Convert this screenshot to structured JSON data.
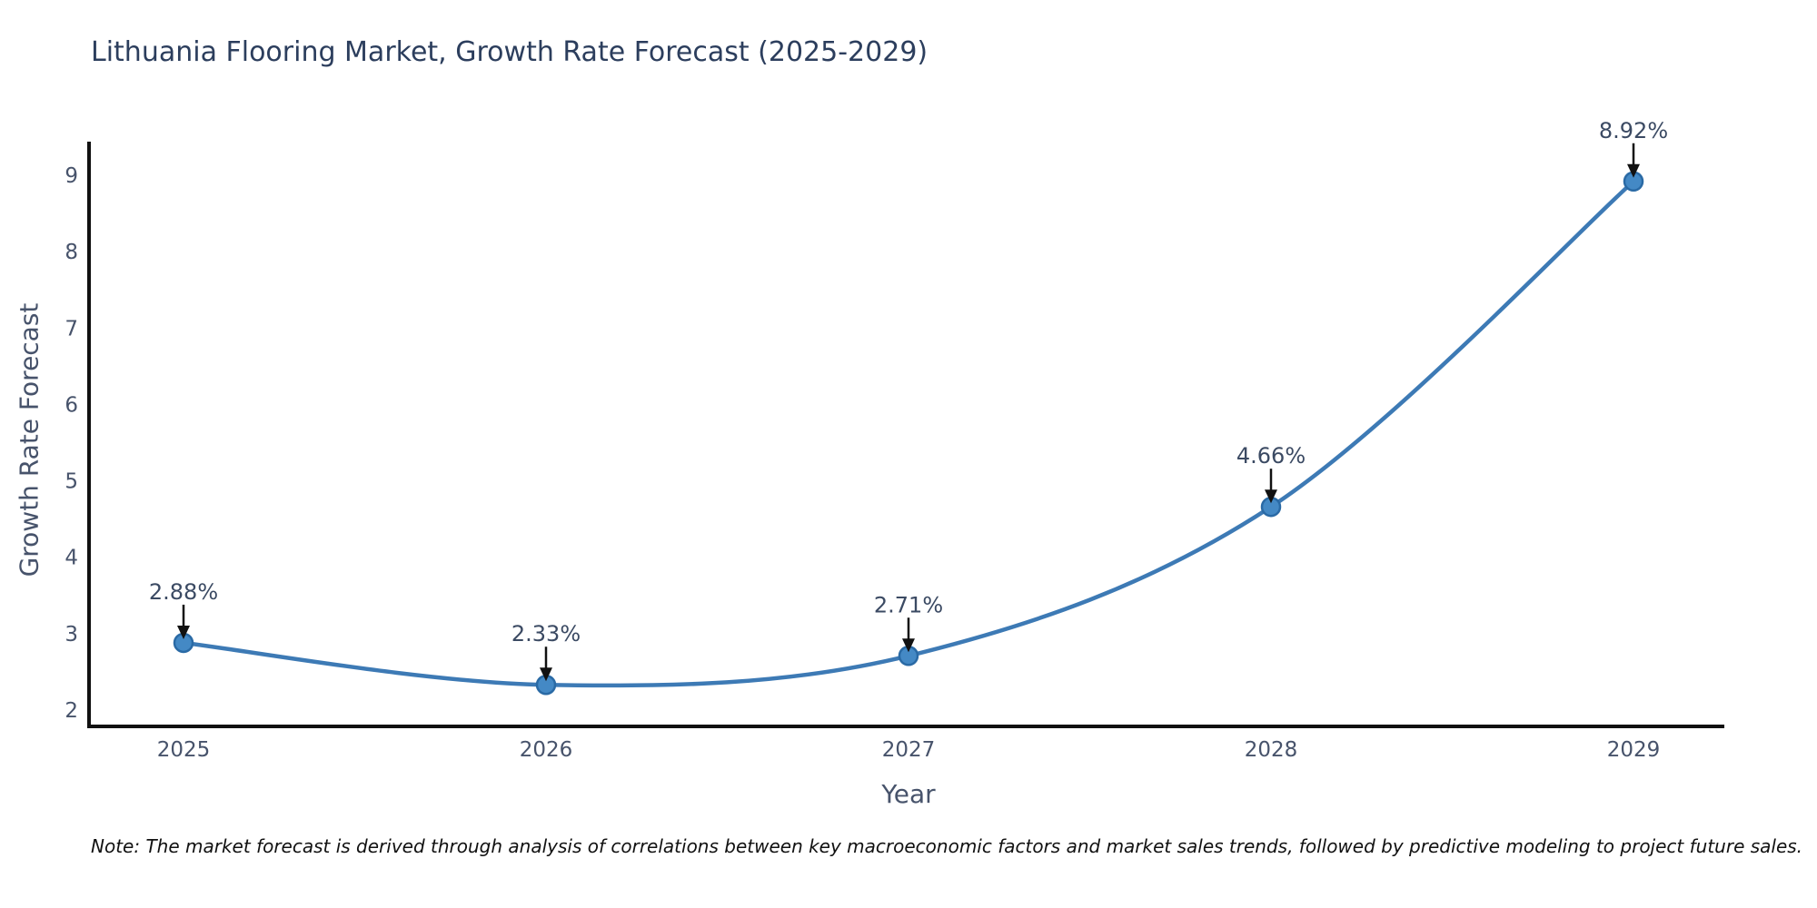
{
  "chart_data": {
    "type": "line",
    "title": "Lithuania Flooring Market, Growth Rate Forecast (2025-2029)",
    "xlabel": "Year",
    "ylabel": "Growth Rate Forecast",
    "x": [
      2025,
      2026,
      2027,
      2028,
      2029
    ],
    "series": [
      {
        "name": "Growth Rate Forecast",
        "values": [
          2.88,
          2.33,
          2.71,
          4.66,
          8.92
        ]
      }
    ],
    "point_labels": [
      "2.88%",
      "2.33%",
      "2.71%",
      "4.66%",
      "8.92%"
    ],
    "yticks": [
      2,
      3,
      4,
      5,
      6,
      7,
      8,
      9
    ],
    "ylim": [
      1.8,
      9.65
    ],
    "grid": false,
    "legend": false,
    "smooth": true,
    "note": "Note: The market forecast is derived through analysis of correlations between key macroeconomic factors and market sales trends, followed by predictive modeling to project future sales.",
    "colors": {
      "line": "#3d7ab5",
      "marker_fill": "#4489c5",
      "marker_edge": "#2a6aa5",
      "arrow": "#111111",
      "axis": "#111111",
      "tick_label": "#47536b",
      "title": "#2c3e5d",
      "annotation": "#3b4a63",
      "note": "#111111"
    }
  }
}
